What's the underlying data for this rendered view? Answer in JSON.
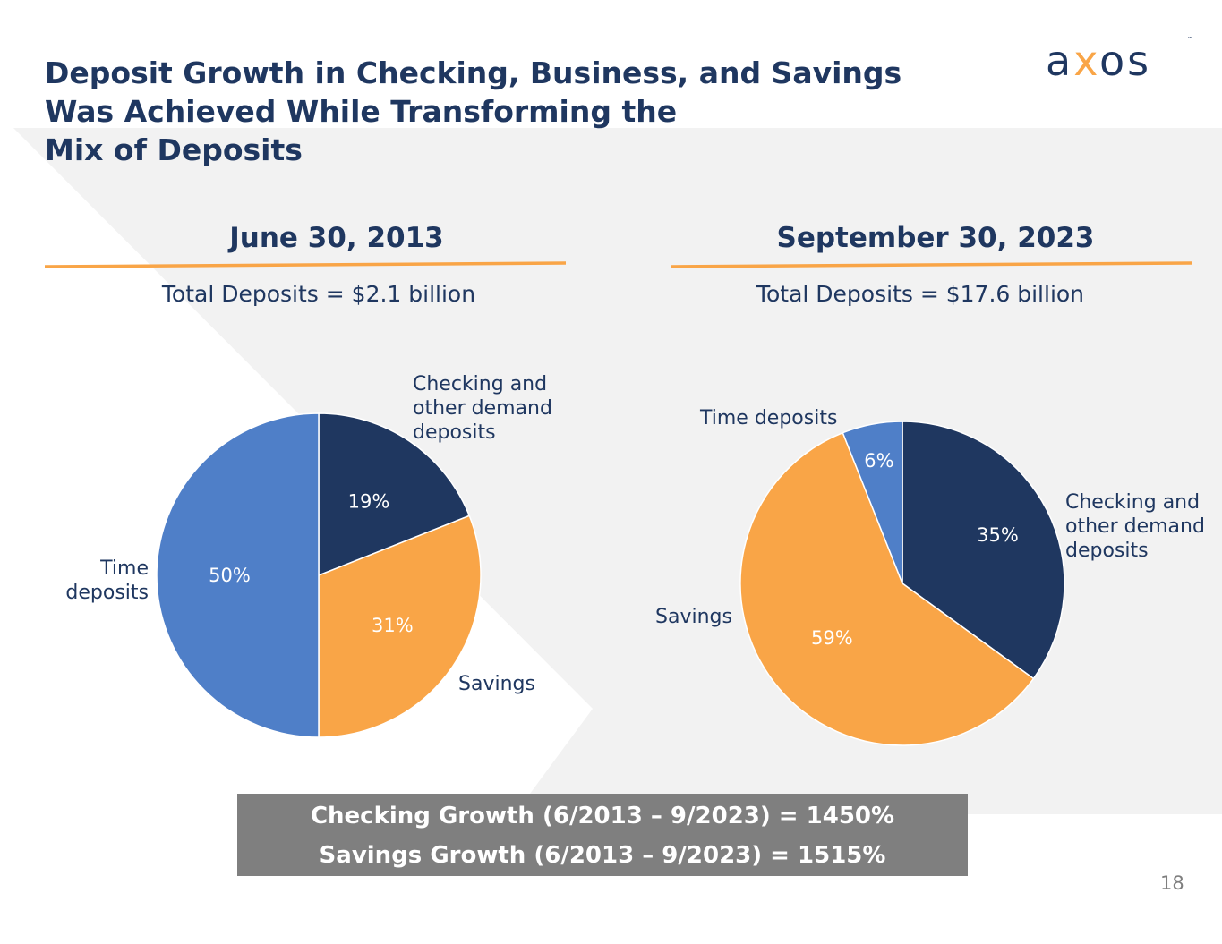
{
  "title": "Deposit Growth in Checking, Business, and Savings\nWas Achieved While Transforming the\nMix of Deposits",
  "logo": {
    "text_a": "a",
    "text_x": "x",
    "text_os": "os",
    "tm": "™"
  },
  "colors": {
    "navy": "#1f3760",
    "orange": "#f9a547",
    "blue": "#4f7fc8",
    "gray_box": "#7f7f7f",
    "rule": "#f9a547",
    "background_panel": "#f2f2f2"
  },
  "chart_data": [
    {
      "type": "pie",
      "title": "June 30, 2013",
      "subtitle": "Total Deposits = $2.1 billion",
      "slices": [
        {
          "label": "Checking and other demand deposits",
          "value": 19,
          "value_label": "19%",
          "color": "#1f3760"
        },
        {
          "label": "Savings",
          "value": 31,
          "value_label": "31%",
          "color": "#f9a547"
        },
        {
          "label": "Time deposits",
          "value": 50,
          "value_label": "50%",
          "color": "#4f7fc8"
        }
      ]
    },
    {
      "type": "pie",
      "title": "September 30, 2023",
      "subtitle": "Total Deposits = $17.6 billion",
      "slices": [
        {
          "label": "Checking and other demand deposits",
          "value": 35,
          "value_label": "35%",
          "color": "#1f3760"
        },
        {
          "label": "Savings",
          "value": 59,
          "value_label": "59%",
          "color": "#f9a547"
        },
        {
          "label": "Time deposits",
          "value": 6,
          "value_label": "6%",
          "color": "#4f7fc8"
        }
      ]
    }
  ],
  "labels": {
    "left_checking": "Checking and\nother demand\ndeposits",
    "left_savings": "Savings",
    "left_time": "Time\ndeposits",
    "right_time": "Time deposits",
    "right_checking": "Checking and\nother demand\ndeposits",
    "right_savings": "Savings"
  },
  "growth": {
    "checking": "Checking Growth (6/2013 – 9/2023) = 1450%",
    "savings": "Savings Growth (6/2013 – 9/2023) = 1515%"
  },
  "page_number": "18"
}
